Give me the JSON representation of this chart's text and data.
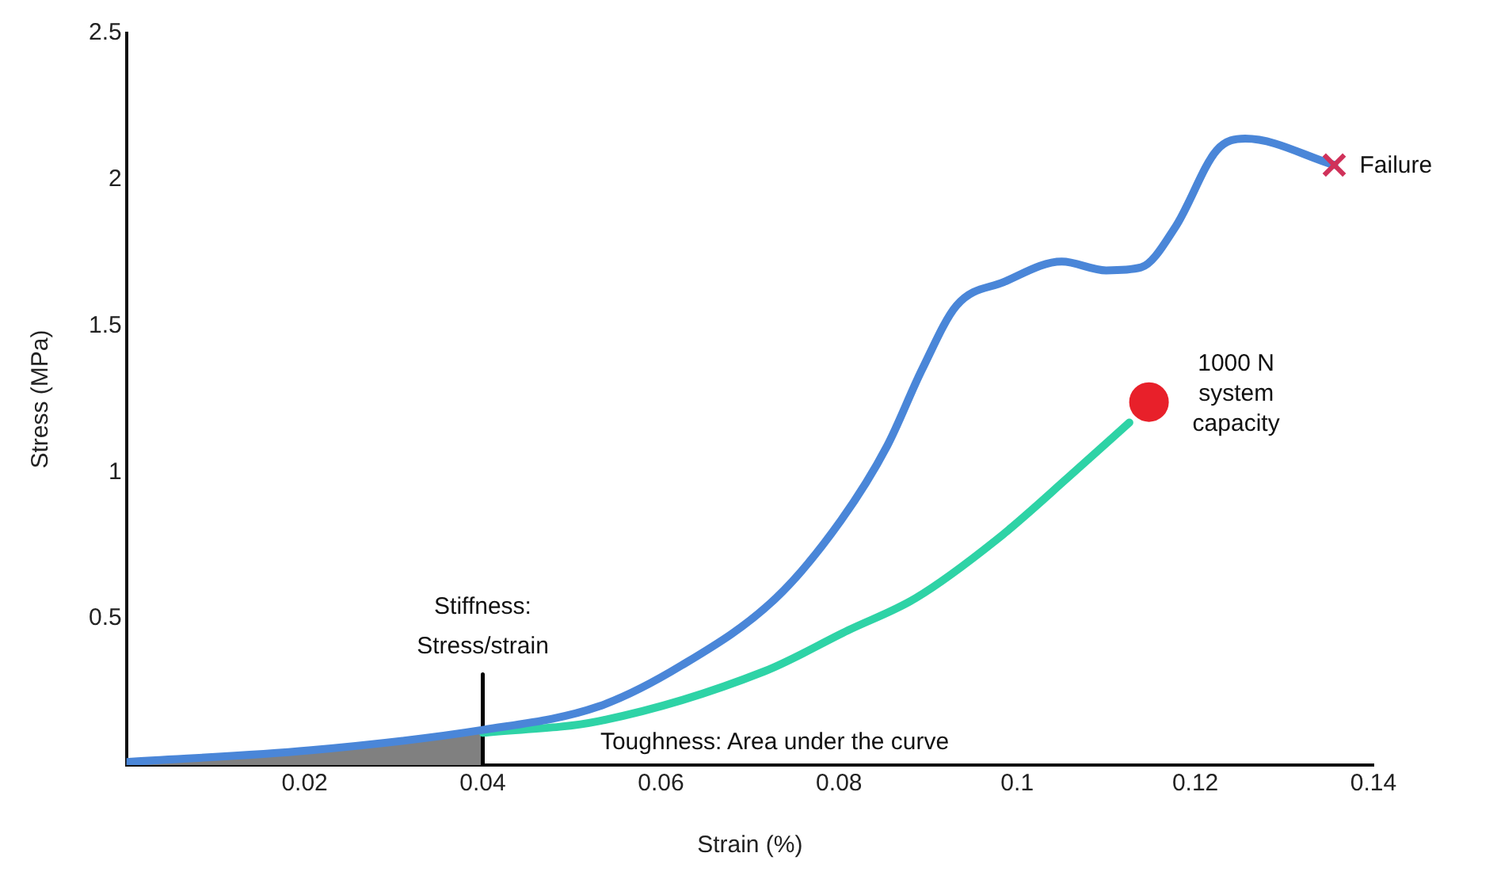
{
  "chart_data": {
    "type": "line",
    "xlabel": "Strain (%)",
    "ylabel": "Stress (MPa)",
    "xlim": [
      0,
      0.14
    ],
    "xticks": [
      0.02,
      0.04,
      0.06,
      0.08,
      0.1,
      0.12,
      0.14
    ],
    "ylim": [
      0,
      2.5
    ],
    "yticks": [
      0.5,
      1,
      1.5,
      2,
      2.5
    ],
    "grid": false,
    "legend": false,
    "series": [
      {
        "type": "area",
        "color": "#808080",
        "x": [
          0,
          0.0205,
          0.04
        ],
        "values": [
          0.01,
          0.05,
          0.12
        ]
      },
      {
        "color": "#4a86d8",
        "x": [
          0,
          0.0205,
          0.04,
          0.053,
          0.0623,
          0.0729,
          0.0802,
          0.0854,
          0.0893,
          0.0932,
          0.0985,
          0.105,
          0.11,
          0.1139,
          0.1178,
          0.1224,
          0.1256,
          0.1356
        ],
        "values": [
          0.01,
          0.05,
          0.12,
          0.2,
          0.34,
          0.57,
          0.835,
          1.09,
          1.35,
          1.57,
          1.65,
          1.72,
          1.69,
          1.7,
          1.84,
          2.1,
          2.14,
          2.05
        ]
      },
      {
        "color": "#2ed3a6",
        "x": [
          0.04,
          0.053,
          0.0716,
          0.081,
          0.0886,
          0.0977,
          0.106,
          0.1126
        ],
        "values": [
          0.11,
          0.15,
          0.32,
          0.46,
          0.57,
          0.77,
          0.99,
          1.17
        ]
      },
      {
        "type": "line",
        "color": "#000000",
        "x": [
          0.04,
          0.04
        ],
        "values": [
          0,
          0.31
        ]
      },
      {
        "type": "scatter",
        "marker": "cross",
        "color": "#d0325a",
        "x": [
          0.1356
        ],
        "values": [
          2.05
        ]
      },
      {
        "type": "scatter",
        "marker": "circle",
        "color": "#e8202a",
        "x": [
          0.1148
        ],
        "values": [
          1.24
        ]
      }
    ],
    "annotations": [
      {
        "text": "Failure",
        "x": 0.1356,
        "y": 2.05
      },
      {
        "text": "1000 N\nsystem\ncapacity",
        "x": 0.1148,
        "y": 1.24
      },
      {
        "text": "Stiffness:\nStress/strain",
        "x": 0.04,
        "y": 0.31
      },
      "Toughness: Area under the curve"
    ]
  }
}
